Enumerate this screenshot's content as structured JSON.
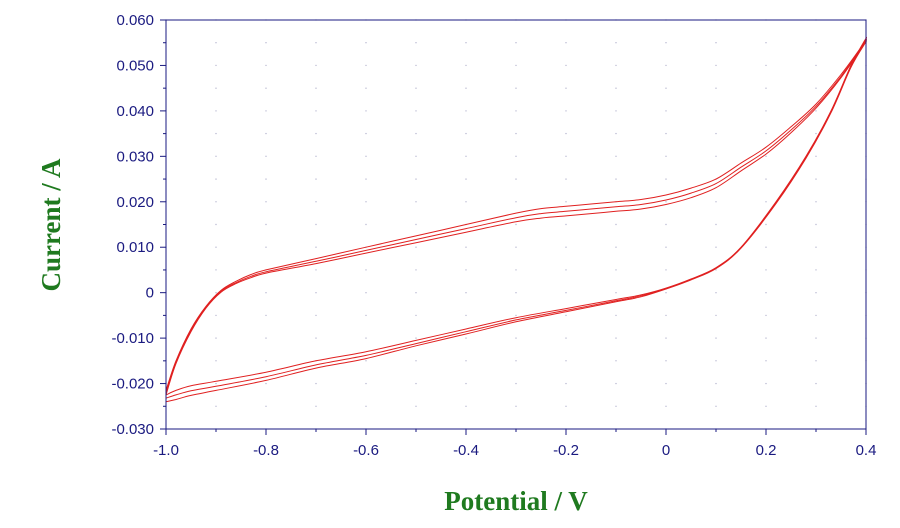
{
  "chart_data": {
    "type": "line",
    "title": "",
    "xlabel": "Potential / V",
    "ylabel": "Current / A",
    "xlim": [
      -1.0,
      0.4
    ],
    "ylim": [
      -0.03,
      0.06
    ],
    "grid": true,
    "x_ticks": [
      "-1.0",
      "-0.8",
      "-0.6",
      "-0.4",
      "-0.2",
      "0",
      "0.2",
      "0.4"
    ],
    "y_ticks": [
      "-0.030",
      "-0.020",
      "-0.010",
      "0",
      "0.010",
      "0.020",
      "0.030",
      "0.040",
      "0.050",
      "0.060"
    ],
    "series": [
      {
        "color": "#e02020",
        "x": [
          -1.0,
          -0.98,
          -0.95,
          -0.92,
          -0.89,
          -0.86,
          -0.83,
          -0.8,
          -0.7,
          -0.6,
          -0.5,
          -0.4,
          -0.3,
          -0.25,
          -0.2,
          -0.15,
          -0.1,
          -0.05,
          0.0,
          0.05,
          0.1,
          0.15,
          0.2,
          0.25,
          0.3,
          0.35,
          0.39,
          0.4,
          0.37,
          0.33,
          0.28,
          0.22,
          0.15,
          0.1,
          0.05,
          0.0,
          -0.05,
          -0.1,
          -0.2,
          -0.3,
          -0.4,
          -0.5,
          -0.6,
          -0.7,
          -0.8,
          -0.9,
          -0.95,
          -0.98,
          -1.0
        ],
        "y": [
          -0.0215,
          -0.015,
          -0.008,
          -0.003,
          0.0005,
          0.0025,
          0.004,
          0.005,
          0.0075,
          0.01,
          0.0125,
          0.015,
          0.0175,
          0.0185,
          0.019,
          0.0195,
          0.02,
          0.0205,
          0.0215,
          0.023,
          0.025,
          0.0285,
          0.032,
          0.0365,
          0.0415,
          0.048,
          0.054,
          0.056,
          0.05,
          0.04,
          0.03,
          0.02,
          0.01,
          0.0055,
          0.003,
          0.001,
          -0.0005,
          -0.0015,
          -0.0035,
          -0.0055,
          -0.008,
          -0.0105,
          -0.013,
          -0.015,
          -0.0175,
          -0.0195,
          -0.0205,
          -0.0215,
          -0.0225
        ]
      },
      {
        "color": "#e02020",
        "x": [
          -1.0,
          -0.98,
          -0.95,
          -0.92,
          -0.89,
          -0.86,
          -0.83,
          -0.8,
          -0.7,
          -0.6,
          -0.5,
          -0.4,
          -0.3,
          -0.25,
          -0.2,
          -0.15,
          -0.1,
          -0.05,
          0.0,
          0.05,
          0.1,
          0.15,
          0.2,
          0.25,
          0.3,
          0.35,
          0.39,
          0.4,
          0.37,
          0.33,
          0.28,
          0.22,
          0.15,
          0.1,
          0.05,
          0.0,
          -0.05,
          -0.1,
          -0.2,
          -0.3,
          -0.4,
          -0.5,
          -0.6,
          -0.7,
          -0.8,
          -0.9,
          -0.95,
          -0.98,
          -1.0
        ],
        "y": [
          -0.022,
          -0.0153,
          -0.0083,
          -0.0032,
          0.0003,
          0.0022,
          0.0036,
          0.0046,
          0.0069,
          0.0093,
          0.0117,
          0.0141,
          0.0165,
          0.0174,
          0.0179,
          0.0184,
          0.0189,
          0.0194,
          0.0204,
          0.0219,
          0.024,
          0.0276,
          0.0312,
          0.0358,
          0.041,
          0.0476,
          0.0538,
          0.0556,
          0.0498,
          0.0398,
          0.0298,
          0.0198,
          0.0099,
          0.0054,
          0.0029,
          0.0009,
          -0.0007,
          -0.0018,
          -0.0039,
          -0.006,
          -0.0086,
          -0.0112,
          -0.0138,
          -0.0159,
          -0.0185,
          -0.0206,
          -0.0216,
          -0.0225,
          -0.0232
        ]
      },
      {
        "color": "#e02020",
        "x": [
          -1.0,
          -0.98,
          -0.95,
          -0.92,
          -0.89,
          -0.86,
          -0.83,
          -0.8,
          -0.7,
          -0.6,
          -0.5,
          -0.4,
          -0.3,
          -0.25,
          -0.2,
          -0.15,
          -0.1,
          -0.05,
          0.0,
          0.05,
          0.1,
          0.15,
          0.2,
          0.25,
          0.3,
          0.35,
          0.39,
          0.4,
          0.37,
          0.33,
          0.28,
          0.22,
          0.15,
          0.1,
          0.05,
          0.0,
          -0.05,
          -0.1,
          -0.2,
          -0.3,
          -0.4,
          -0.5,
          -0.6,
          -0.7,
          -0.8,
          -0.9,
          -0.95,
          -0.98,
          -1.0
        ],
        "y": [
          -0.0225,
          -0.0156,
          -0.0086,
          -0.0034,
          0.0001,
          0.002,
          0.0033,
          0.0043,
          0.0064,
          0.0087,
          0.011,
          0.0133,
          0.0156,
          0.0164,
          0.0169,
          0.0174,
          0.0179,
          0.0184,
          0.0194,
          0.0209,
          0.0231,
          0.0268,
          0.0305,
          0.0352,
          0.0406,
          0.0473,
          0.0536,
          0.0552,
          0.0496,
          0.0396,
          0.0296,
          0.0196,
          0.0098,
          0.0053,
          0.0028,
          0.0008,
          -0.0009,
          -0.002,
          -0.0042,
          -0.0064,
          -0.0091,
          -0.0117,
          -0.0145,
          -0.0166,
          -0.0193,
          -0.0215,
          -0.0226,
          -0.0235,
          -0.024
        ]
      }
    ]
  }
}
